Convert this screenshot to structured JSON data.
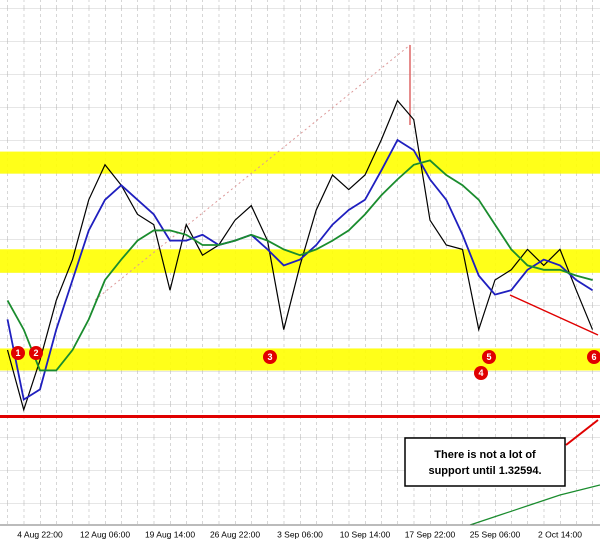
{
  "chart_data": {
    "type": "line",
    "categories": [
      null,
      null,
      "4 Aug 22:00",
      null,
      null,
      null,
      "12 Aug 06:00",
      null,
      null,
      null,
      "19 Aug 14:00",
      null,
      null,
      null,
      "26 Aug 22:00",
      null,
      null,
      null,
      "3 Sep 06:00",
      null,
      null,
      null,
      "10 Sep 14:00",
      null,
      null,
      null,
      "17 Sep 22:00",
      null,
      null,
      null,
      "25 Sep 06:00",
      null,
      null,
      null,
      "2 Oct 14:00",
      null,
      null
    ],
    "ylim": [
      1.3185,
      1.3545
    ],
    "series": [
      {
        "color": "#000000",
        "values": [
          1.3305,
          1.3264,
          1.3298,
          1.3339,
          1.3367,
          1.3408,
          1.3432,
          1.3418,
          1.3398,
          1.3391,
          1.3346,
          1.3391,
          1.337,
          1.3377,
          1.3394,
          1.3404,
          1.338,
          1.3319,
          1.3363,
          1.3401,
          1.3425,
          1.3415,
          1.3425,
          1.3449,
          1.3476,
          1.3463,
          1.3394,
          1.3377,
          1.3374,
          1.3319,
          1.3353,
          1.336,
          1.3374,
          1.3363,
          1.3374,
          1.3346,
          1.3319
        ]
      },
      {
        "color": "#1f1fbf",
        "values": [
          1.3326,
          1.3271,
          1.3278,
          1.3319,
          1.3353,
          1.3387,
          1.3408,
          1.3418,
          1.3408,
          1.3398,
          1.338,
          1.338,
          1.3384,
          1.3377,
          1.338,
          1.3384,
          1.3374,
          1.3363,
          1.3367,
          1.3377,
          1.3391,
          1.3401,
          1.3408,
          1.3428,
          1.3449,
          1.3442,
          1.3422,
          1.3408,
          1.3384,
          1.3356,
          1.3343,
          1.3346,
          1.336,
          1.3367,
          1.3363,
          1.3353,
          1.3346
        ]
      },
      {
        "color": "#1a8c2e",
        "values": [
          1.3339,
          1.3319,
          1.3291,
          1.3291,
          1.3305,
          1.3326,
          1.3353,
          1.3367,
          1.338,
          1.3387,
          1.3387,
          1.3384,
          1.3377,
          1.3377,
          1.338,
          1.3384,
          1.338,
          1.3374,
          1.337,
          1.3374,
          1.338,
          1.3387,
          1.3398,
          1.3411,
          1.3422,
          1.3432,
          1.3435,
          1.3425,
          1.3418,
          1.3408,
          1.3391,
          1.3374,
          1.3363,
          1.336,
          1.336,
          1.3356,
          1.3353
        ]
      }
    ],
    "zones": [
      [
        1.3428,
        1.3439
      ],
      [
        1.336,
        1.3372
      ],
      [
        1.3293,
        1.3304
      ]
    ],
    "zone_color": "#ffff00",
    "support_line": 1.32594,
    "support_color": "#e00000",
    "markers": [
      "1",
      "2",
      "3",
      "4",
      "5",
      "6"
    ],
    "annotation": [
      "There is not a lot of",
      "support until 1.32594."
    ]
  }
}
